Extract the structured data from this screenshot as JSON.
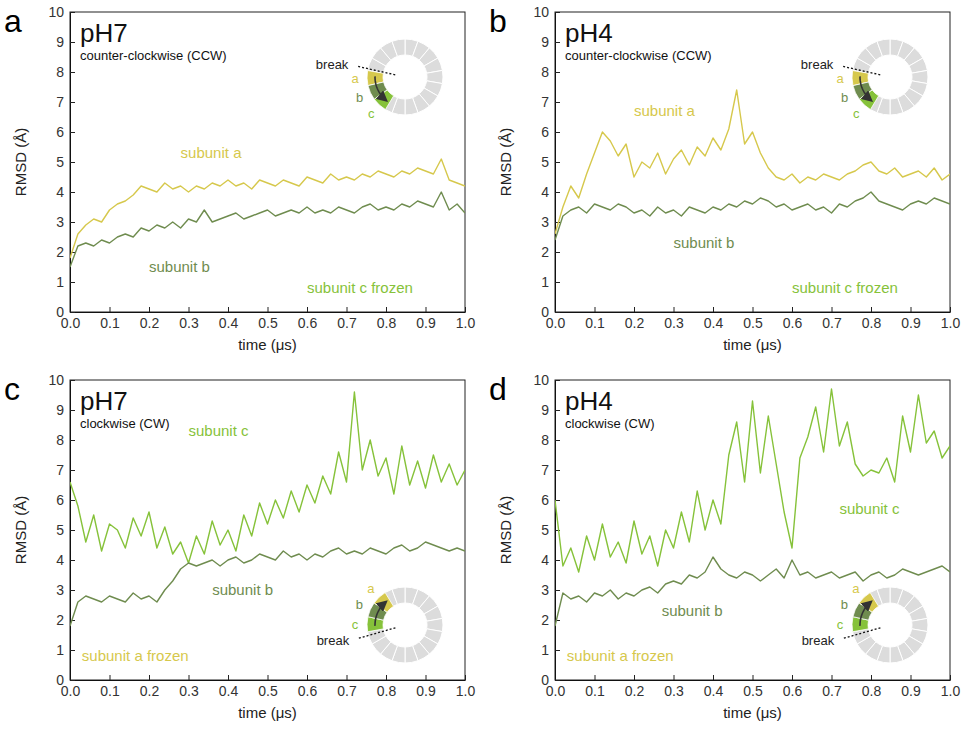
{
  "chart_data": [
    {
      "type": "line",
      "panel_label": "a",
      "title": "pH7",
      "subtitle": "counter-clockwise (CCW)",
      "x_label": "time (μs)",
      "y_label": "RMSD (Å)",
      "xlim": [
        0,
        1
      ],
      "ylim": [
        0,
        10
      ],
      "xticks": [
        {
          "value": 0,
          "label": "0.0"
        },
        0.1,
        0.2,
        0.3,
        0.4,
        0.5,
        0.6,
        0.7,
        0.8,
        0.9,
        {
          "value": 1,
          "label": "1.0"
        }
      ],
      "yticks": [
        0,
        1,
        2,
        3,
        4,
        5,
        6,
        7,
        8,
        9,
        10
      ],
      "x": [
        0,
        0.02,
        0.04,
        0.06,
        0.08,
        0.1,
        0.12,
        0.14,
        0.16,
        0.18,
        0.2,
        0.22,
        0.24,
        0.26,
        0.28,
        0.3,
        0.32,
        0.34,
        0.36,
        0.38,
        0.4,
        0.42,
        0.44,
        0.46,
        0.48,
        0.5,
        0.52,
        0.54,
        0.56,
        0.58,
        0.6,
        0.62,
        0.64,
        0.66,
        0.68,
        0.7,
        0.72,
        0.74,
        0.76,
        0.78,
        0.8,
        0.82,
        0.84,
        0.86,
        0.88,
        0.9,
        0.92,
        0.94,
        0.96,
        0.98,
        1
      ],
      "series": [
        {
          "name": "subunit a",
          "color": "#d6c84c",
          "values": [
            1.8,
            2.6,
            2.9,
            3.1,
            3.0,
            3.4,
            3.6,
            3.7,
            3.9,
            4.2,
            4.1,
            4.0,
            4.3,
            4.1,
            4.2,
            4.0,
            4.2,
            4.1,
            4.3,
            4.2,
            4.4,
            4.2,
            4.3,
            4.1,
            4.4,
            4.3,
            4.2,
            4.4,
            4.3,
            4.2,
            4.5,
            4.4,
            4.3,
            4.6,
            4.4,
            4.5,
            4.4,
            4.6,
            4.5,
            4.7,
            4.6,
            4.5,
            4.7,
            4.6,
            4.8,
            4.7,
            4.6,
            5.1,
            4.4,
            4.3,
            4.2
          ]
        },
        {
          "name": "subunit b",
          "color": "#6f8c4f",
          "values": [
            1.5,
            2.2,
            2.3,
            2.2,
            2.4,
            2.3,
            2.5,
            2.6,
            2.5,
            2.8,
            2.7,
            2.9,
            2.8,
            3.0,
            2.8,
            3.1,
            3.0,
            3.4,
            3.0,
            3.1,
            3.2,
            3.3,
            3.1,
            3.2,
            3.3,
            3.4,
            3.2,
            3.3,
            3.4,
            3.3,
            3.5,
            3.3,
            3.4,
            3.3,
            3.5,
            3.4,
            3.3,
            3.5,
            3.6,
            3.4,
            3.5,
            3.4,
            3.6,
            3.5,
            3.7,
            3.6,
            3.5,
            4.0,
            3.4,
            3.6,
            3.3
          ]
        }
      ],
      "annotations": [
        "subunit c frozen",
        "break",
        "a",
        "b",
        "c"
      ]
    },
    {
      "type": "line",
      "panel_label": "b",
      "title": "pH4",
      "subtitle": "counter-clockwise (CCW)",
      "x_label": "time (μs)",
      "y_label": "RMSD (Å)",
      "xlim": [
        0,
        1
      ],
      "ylim": [
        0,
        10
      ],
      "xticks": [
        {
          "value": 0,
          "label": "0.0"
        },
        0.1,
        0.2,
        0.3,
        0.4,
        0.5,
        0.6,
        0.7,
        0.8,
        0.9,
        {
          "value": 1,
          "label": "1.0"
        }
      ],
      "yticks": [
        0,
        1,
        2,
        3,
        4,
        5,
        6,
        7,
        8,
        9,
        10
      ],
      "x": [
        0,
        0.02,
        0.04,
        0.06,
        0.08,
        0.1,
        0.12,
        0.14,
        0.16,
        0.18,
        0.2,
        0.22,
        0.24,
        0.26,
        0.28,
        0.3,
        0.32,
        0.34,
        0.36,
        0.38,
        0.4,
        0.42,
        0.44,
        0.46,
        0.48,
        0.5,
        0.52,
        0.54,
        0.56,
        0.58,
        0.6,
        0.62,
        0.64,
        0.66,
        0.68,
        0.7,
        0.72,
        0.74,
        0.76,
        0.78,
        0.8,
        0.82,
        0.84,
        0.86,
        0.88,
        0.9,
        0.92,
        0.94,
        0.96,
        0.98,
        1
      ],
      "series": [
        {
          "name": "subunit a",
          "color": "#d6c84c",
          "values": [
            2.6,
            3.5,
            4.2,
            3.8,
            4.6,
            5.3,
            6.0,
            5.7,
            5.2,
            5.6,
            4.5,
            5.0,
            4.8,
            5.3,
            4.6,
            5.1,
            5.4,
            4.9,
            5.5,
            5.2,
            5.8,
            5.4,
            6.1,
            7.4,
            5.6,
            6.0,
            5.3,
            4.8,
            4.5,
            4.4,
            4.6,
            4.3,
            4.5,
            4.4,
            4.6,
            4.5,
            4.4,
            4.6,
            4.7,
            4.9,
            5.0,
            4.7,
            4.6,
            4.8,
            4.5,
            4.6,
            4.7,
            4.5,
            4.8,
            4.4,
            4.6
          ]
        },
        {
          "name": "subunit b",
          "color": "#6f8c4f",
          "values": [
            2.4,
            3.2,
            3.4,
            3.5,
            3.3,
            3.6,
            3.5,
            3.4,
            3.6,
            3.5,
            3.3,
            3.4,
            3.2,
            3.5,
            3.3,
            3.4,
            3.2,
            3.5,
            3.4,
            3.3,
            3.5,
            3.4,
            3.6,
            3.5,
            3.7,
            3.6,
            3.8,
            3.7,
            3.5,
            3.6,
            3.4,
            3.5,
            3.6,
            3.4,
            3.5,
            3.3,
            3.6,
            3.5,
            3.7,
            3.8,
            4.0,
            3.7,
            3.6,
            3.5,
            3.4,
            3.6,
            3.7,
            3.6,
            3.8,
            3.7,
            3.6
          ]
        }
      ],
      "annotations": [
        "subunit c frozen",
        "break",
        "a",
        "b",
        "c"
      ]
    },
    {
      "type": "line",
      "panel_label": "c",
      "title": "pH7",
      "subtitle": "clockwise (CW)",
      "x_label": "time (μs)",
      "y_label": "RMSD (Å)",
      "xlim": [
        0,
        1
      ],
      "ylim": [
        0,
        10
      ],
      "xticks": [
        {
          "value": 0,
          "label": "0.0"
        },
        0.1,
        0.2,
        0.3,
        0.4,
        0.5,
        0.6,
        0.7,
        0.8,
        0.9,
        {
          "value": 1,
          "label": "1.0"
        }
      ],
      "yticks": [
        0,
        1,
        2,
        3,
        4,
        5,
        6,
        7,
        8,
        9,
        10
      ],
      "x": [
        0,
        0.02,
        0.04,
        0.06,
        0.08,
        0.1,
        0.12,
        0.14,
        0.16,
        0.18,
        0.2,
        0.22,
        0.24,
        0.26,
        0.28,
        0.3,
        0.32,
        0.34,
        0.36,
        0.38,
        0.4,
        0.42,
        0.44,
        0.46,
        0.48,
        0.5,
        0.52,
        0.54,
        0.56,
        0.58,
        0.6,
        0.62,
        0.64,
        0.66,
        0.68,
        0.7,
        0.72,
        0.74,
        0.76,
        0.78,
        0.8,
        0.82,
        0.84,
        0.86,
        0.88,
        0.9,
        0.92,
        0.94,
        0.96,
        0.98,
        1
      ],
      "series": [
        {
          "name": "subunit c",
          "color": "#86c23a",
          "values": [
            6.6,
            5.8,
            4.6,
            5.5,
            4.3,
            5.2,
            5.0,
            4.4,
            5.4,
            4.8,
            5.6,
            4.4,
            5.1,
            4.2,
            4.6,
            3.9,
            4.8,
            4.2,
            5.3,
            4.5,
            5.0,
            4.3,
            5.5,
            4.8,
            5.9,
            5.2,
            6.0,
            5.4,
            6.3,
            5.6,
            6.5,
            5.9,
            6.8,
            6.2,
            7.6,
            6.6,
            9.6,
            7.0,
            8.0,
            6.8,
            7.4,
            6.2,
            7.8,
            6.5,
            7.3,
            6.4,
            7.5,
            6.6,
            7.2,
            6.5,
            7.0
          ]
        },
        {
          "name": "subunit b",
          "color": "#6f8c4f",
          "values": [
            1.8,
            2.6,
            2.8,
            2.7,
            2.6,
            2.8,
            2.7,
            2.6,
            2.9,
            2.7,
            2.8,
            2.6,
            3.0,
            3.3,
            3.7,
            3.9,
            3.8,
            3.9,
            4.0,
            3.8,
            4.0,
            4.1,
            3.9,
            4.0,
            4.2,
            4.1,
            4.0,
            4.3,
            4.1,
            4.2,
            4.0,
            4.2,
            4.1,
            4.3,
            4.4,
            4.2,
            4.3,
            4.2,
            4.4,
            4.3,
            4.2,
            4.4,
            4.5,
            4.3,
            4.4,
            4.6,
            4.5,
            4.4,
            4.3,
            4.4,
            4.3
          ]
        }
      ],
      "annotations": [
        "subunit a frozen",
        "break",
        "a",
        "b",
        "c"
      ]
    },
    {
      "type": "line",
      "panel_label": "d",
      "title": "pH4",
      "subtitle": "clockwise (CW)",
      "x_label": "time (μs)",
      "y_label": "RMSD (Å)",
      "xlim": [
        0,
        1
      ],
      "ylim": [
        0,
        10
      ],
      "xticks": [
        {
          "value": 0,
          "label": "0.0"
        },
        0.1,
        0.2,
        0.3,
        0.4,
        0.5,
        0.6,
        0.7,
        0.8,
        0.9,
        {
          "value": 1,
          "label": "1.0"
        }
      ],
      "yticks": [
        0,
        1,
        2,
        3,
        4,
        5,
        6,
        7,
        8,
        9,
        10
      ],
      "x": [
        0,
        0.02,
        0.04,
        0.06,
        0.08,
        0.1,
        0.12,
        0.14,
        0.16,
        0.18,
        0.2,
        0.22,
        0.24,
        0.26,
        0.28,
        0.3,
        0.32,
        0.34,
        0.36,
        0.38,
        0.4,
        0.42,
        0.44,
        0.46,
        0.48,
        0.5,
        0.52,
        0.54,
        0.56,
        0.58,
        0.6,
        0.62,
        0.64,
        0.66,
        0.68,
        0.7,
        0.72,
        0.74,
        0.76,
        0.78,
        0.8,
        0.82,
        0.84,
        0.86,
        0.88,
        0.9,
        0.92,
        0.94,
        0.96,
        0.98,
        1
      ],
      "series": [
        {
          "name": "subunit c",
          "color": "#86c23a",
          "values": [
            6.0,
            3.8,
            4.4,
            3.6,
            4.8,
            4.0,
            5.2,
            4.1,
            4.6,
            3.9,
            5.3,
            4.2,
            4.8,
            3.8,
            5.0,
            4.4,
            5.6,
            4.6,
            6.3,
            5.0,
            6.0,
            5.2,
            7.5,
            8.6,
            6.6,
            9.3,
            6.9,
            8.8,
            7.2,
            5.6,
            4.4,
            7.4,
            8.1,
            9.1,
            7.6,
            9.7,
            7.8,
            8.6,
            7.2,
            6.8,
            7.0,
            6.9,
            7.4,
            6.6,
            8.8,
            7.6,
            9.5,
            7.9,
            8.3,
            7.4,
            7.8
          ]
        },
        {
          "name": "subunit b",
          "color": "#6f8c4f",
          "values": [
            1.8,
            2.9,
            2.7,
            2.8,
            2.6,
            2.9,
            2.8,
            3.0,
            2.7,
            2.9,
            2.8,
            3.0,
            3.1,
            2.9,
            3.2,
            3.3,
            3.2,
            3.5,
            3.4,
            3.6,
            4.1,
            3.7,
            3.5,
            3.4,
            3.6,
            3.5,
            3.3,
            3.5,
            3.7,
            3.4,
            4.0,
            3.5,
            3.6,
            3.4,
            3.5,
            3.6,
            3.4,
            3.5,
            3.6,
            3.3,
            3.5,
            3.6,
            3.4,
            3.5,
            3.7,
            3.6,
            3.5,
            3.6,
            3.7,
            3.8,
            3.6
          ]
        }
      ],
      "annotations": [
        "subunit a frozen",
        "break",
        "a",
        "b",
        "c"
      ]
    }
  ]
}
